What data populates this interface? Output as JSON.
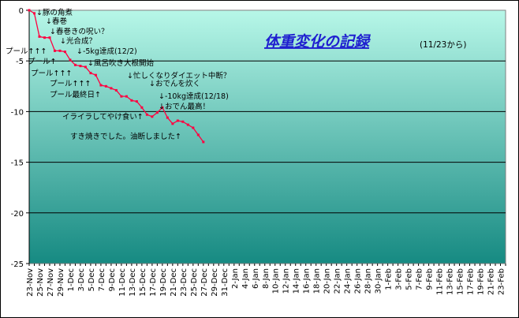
{
  "chart_data": {
    "type": "line",
    "title": "体重変化の記録",
    "subtitle": "(11/23から)",
    "xlabel": "",
    "ylabel": "",
    "ylim": [
      -25,
      0
    ],
    "yticks": [
      0,
      -5,
      -10,
      -15,
      -20,
      -25
    ],
    "grid": true,
    "legend": "none",
    "x_tick_labels": [
      "23-Nov",
      "25-Nov",
      "27-Nov",
      "29-Nov",
      "1-Dec",
      "3-Dec",
      "5-Dec",
      "7-Dec",
      "9-Dec",
      "11-Dec",
      "13-Dec",
      "15-Dec",
      "17-Dec",
      "19-Dec",
      "21-Dec",
      "23-Dec",
      "25-Dec",
      "27-Dec",
      "29-Dec",
      "31-Dec",
      "2-Jan",
      "4-Jan",
      "6-Jan",
      "8-Jan",
      "10-Jan",
      "12-Jan",
      "14-Jan",
      "16-Jan",
      "18-Jan",
      "20-Jan",
      "22-Jan",
      "24-Jan",
      "26-Jan",
      "28-Jan",
      "30-Jan",
      "1-Feb",
      "3-Feb",
      "5-Feb",
      "7-Feb",
      "9-Feb",
      "11-Feb",
      "13-Feb",
      "15-Feb",
      "17-Feb",
      "19-Feb",
      "21-Feb",
      "23-Feb"
    ],
    "series": [
      {
        "color": "#ff0040",
        "values": [
          0,
          -0.3,
          -2.6,
          -2.7,
          -2.7,
          -4.0,
          -4.0,
          -4.1,
          -4.9,
          -5.4,
          -5.5,
          -5.6,
          -6.2,
          -6.4,
          -7.4,
          -7.5,
          -7.7,
          -7.9,
          -8.5,
          -8.5,
          -8.9,
          -9.0,
          -9.6,
          -10.3,
          -10.5,
          -10.1,
          -9.6,
          -10.6,
          -11.2,
          -10.9,
          -11.0,
          -11.3,
          -11.6,
          -12.3,
          -13.0
        ]
      }
    ],
    "annotations": [
      {
        "text": "↓豚の角煮"
      },
      {
        "text": "↓春巻"
      },
      {
        "text": "↓春巻きの呪い？"
      },
      {
        "text": "↓光合成？"
      },
      {
        "text": "プール↑↑↑"
      },
      {
        "text": "↓-5kg達成(12/2)"
      },
      {
        "text": "プール↑"
      },
      {
        "text": "↓風呂吹き大根開始"
      },
      {
        "text": "プール↑↑↑"
      },
      {
        "text": "↓忙しくなりダイエット中断？"
      },
      {
        "text": "プール↑↑↑"
      },
      {
        "text": "↓おでんを炊く"
      },
      {
        "text": "プール最終日↑"
      },
      {
        "text": "↓-10kg達成(12/18)"
      },
      {
        "text": "↓おでん最高！"
      },
      {
        "text": "イライラしてやけ食い↑"
      },
      {
        "text": "すき焼きでした。油断しました↑"
      }
    ],
    "colors": {
      "plot_top": "#b7f7e8",
      "plot_bottom": "#168a82",
      "line": "#ff0040",
      "title": "#1f1fd0"
    }
  }
}
